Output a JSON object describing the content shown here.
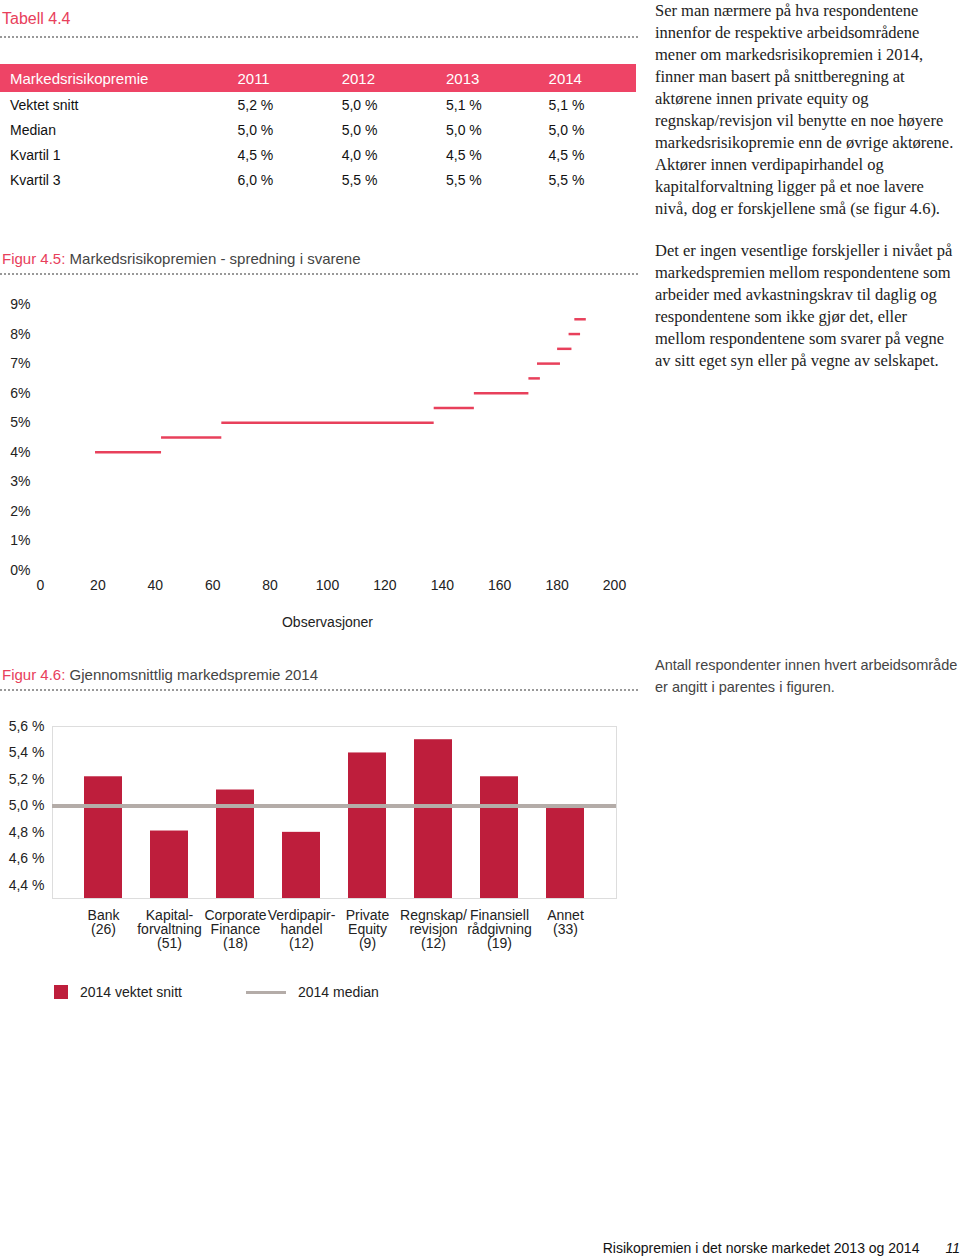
{
  "table": {
    "title": "Tabell 4.4",
    "header": [
      "Markedsrisikopremie",
      "2011",
      "2012",
      "2013",
      "2014"
    ],
    "rows": [
      [
        "Vektet snitt",
        "5,2 %",
        "5,0 %",
        "5,1 %",
        "5,1 %"
      ],
      [
        "Median",
        "5,0 %",
        "5,0 %",
        "5,0 %",
        "5,0 %"
      ],
      [
        "Kvartil 1",
        "4,5 %",
        "4,0 %",
        "4,5 %",
        "4,5 %"
      ],
      [
        "Kvartil 3",
        "6,0 %",
        "5,5 %",
        "5,5 %",
        "5,5 %"
      ]
    ]
  },
  "chart_data": [
    {
      "type": "segments",
      "label": "Figur 4.5:",
      "title": "Markedsrisikopremien - spredning i svarene",
      "x_label": "Observasjoner",
      "color": "#e8405b",
      "segments": [
        {
          "x1": 19,
          "x2": 42,
          "y": 4.0
        },
        {
          "x1": 42,
          "x2": 63,
          "y": 4.5
        },
        {
          "x1": 63,
          "x2": 137,
          "y": 5.0
        },
        {
          "x1": 137,
          "x2": 151,
          "y": 5.5
        },
        {
          "x1": 151,
          "x2": 170,
          "y": 6.0
        },
        {
          "x1": 170,
          "x2": 174,
          "y": 6.5
        },
        {
          "x1": 173,
          "x2": 181,
          "y": 7.0
        },
        {
          "x1": 180,
          "x2": 185,
          "y": 7.5
        },
        {
          "x1": 184,
          "x2": 188,
          "y": 8.0
        },
        {
          "x1": 186,
          "x2": 190,
          "y": 8.5
        }
      ],
      "xlim": [
        0,
        200
      ],
      "xticks": [
        0,
        20,
        40,
        60,
        80,
        100,
        120,
        140,
        160,
        180,
        200
      ],
      "ylim": [
        0,
        9
      ],
      "yticks": [
        {
          "value": 0,
          "label": "0%"
        },
        {
          "value": 1,
          "label": "1%"
        },
        {
          "value": 2,
          "label": "2%"
        },
        {
          "value": 3,
          "label": "3%"
        },
        {
          "value": 4,
          "label": "4%"
        },
        {
          "value": 5,
          "label": "5%"
        },
        {
          "value": 6,
          "label": "6%"
        },
        {
          "value": 7,
          "label": "7%"
        },
        {
          "value": 8,
          "label": "8%"
        },
        {
          "value": 9,
          "label": "9%"
        }
      ],
      "grid": false
    },
    {
      "type": "bar",
      "label": "Figur 4.6:",
      "title": "Gjennomsnittlig markedspremie 2014",
      "subtitle": "Antall respondenter innen hvert arbeidsområde er angitt i parentes i figuren.",
      "categories": [
        "Bank\n(26)",
        "Kapital-\nforvaltning\n(51)",
        "Corporate\nFinance\n(18)",
        "Verdipapir-\nhandel\n(12)",
        "Private\nEquity\n(9)",
        "Regnskap/\nrevisjon\n(12)",
        "Finansiell\nrådgivning\n(19)",
        "Annet\n(33)"
      ],
      "series": [
        {
          "name": "2014 vektet snitt",
          "type": "bar",
          "color": "#be1e3c",
          "values": [
            5.22,
            4.81,
            5.12,
            4.8,
            5.4,
            5.5,
            5.22,
            4.98
          ]
        },
        {
          "name": "2014 median",
          "type": "line",
          "color": "#b4aca8",
          "values": [
            5.0,
            5.0,
            5.0,
            5.0,
            5.0,
            5.0,
            5.0,
            5.0
          ]
        }
      ],
      "ylim": [
        4.3,
        5.6
      ],
      "yticks": [
        {
          "value": 4.4,
          "label": "4,4 %"
        },
        {
          "value": 4.6,
          "label": "4,6 %"
        },
        {
          "value": 4.8,
          "label": "4,8 %"
        },
        {
          "value": 5.0,
          "label": "5,0 %"
        },
        {
          "value": 5.2,
          "label": "5,2 %"
        },
        {
          "value": 5.4,
          "label": "5,4 %"
        },
        {
          "value": 5.6,
          "label": "5,6 %"
        }
      ],
      "grid": false,
      "legend": "bottom"
    }
  ],
  "paragraphs": [
    "Ser man nærmere på hva respondentene innenfor de respektive arbeidsområdene mener om markedsrisikopremien i 2014, finner man basert på snittberegning at aktørene innen private equity og regnskap/revisjon vil benytte en noe høyere markedsrisikopremie enn de øvrige aktørene. Aktører innen verdipapirhandel og kapitalforvaltning ligger på et noe lavere nivå, dog er forskjellene små (se figur 4.6).",
    "Det er ingen vesentlige forskjeller i nivået på markedspremien mellom respondentene som arbeider med avkastningskrav til daglig og respondentene som ikke gjør det, eller mellom respondentene som svarer på vegne av sitt eget syn eller på vegne av selskapet."
  ],
  "footer": {
    "text": "Risikopremien i det norske markedet 2013 og 2014",
    "page": "11"
  }
}
